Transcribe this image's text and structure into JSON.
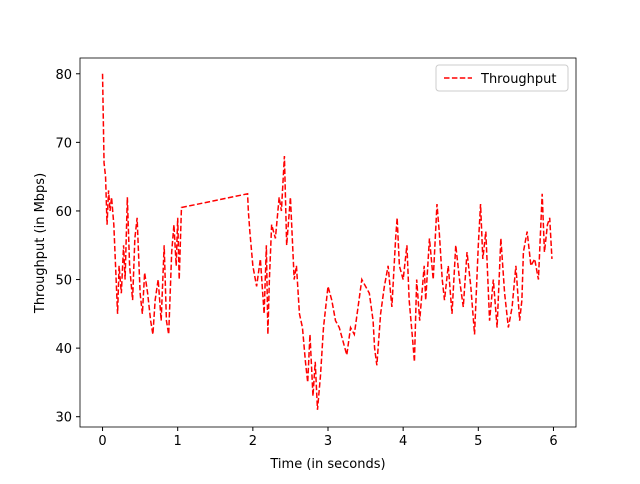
{
  "chart_data": {
    "type": "line",
    "xlabel": "Time (in seconds)",
    "ylabel": "Throughput (in Mbps)",
    "x": [
      0.0,
      0.02,
      0.04,
      0.06,
      0.08,
      0.1,
      0.12,
      0.15,
      0.2,
      0.22,
      0.25,
      0.28,
      0.3,
      0.33,
      0.36,
      0.4,
      0.43,
      0.46,
      0.5,
      0.53,
      0.56,
      0.6,
      0.64,
      0.67,
      0.7,
      0.74,
      0.78,
      0.82,
      0.85,
      0.88,
      0.92,
      0.95,
      0.98,
      1.0,
      1.02,
      1.05,
      1.93,
      1.94,
      1.96,
      2.0,
      2.05,
      2.1,
      2.15,
      2.18,
      2.2,
      2.22,
      2.25,
      2.3,
      2.35,
      2.38,
      2.42,
      2.45,
      2.5,
      2.55,
      2.58,
      2.62,
      2.66,
      2.7,
      2.73,
      2.76,
      2.8,
      2.83,
      2.86,
      2.9,
      2.94,
      3.0,
      3.05,
      3.1,
      3.15,
      3.2,
      3.25,
      3.3,
      3.35,
      3.4,
      3.45,
      3.5,
      3.55,
      3.6,
      3.62,
      3.65,
      3.7,
      3.75,
      3.8,
      3.85,
      3.9,
      3.92,
      3.95,
      4.0,
      4.05,
      4.08,
      4.12,
      4.15,
      4.18,
      4.22,
      4.28,
      4.3,
      4.35,
      4.4,
      4.45,
      4.48,
      4.52,
      4.55,
      4.6,
      4.65,
      4.7,
      4.75,
      4.8,
      4.85,
      4.9,
      4.95,
      5.0,
      5.03,
      5.06,
      5.1,
      5.15,
      5.2,
      5.25,
      5.3,
      5.35,
      5.4,
      5.45,
      5.5,
      5.55,
      5.58,
      5.6,
      5.65,
      5.7,
      5.75,
      5.8,
      5.85,
      5.88,
      5.92,
      5.95,
      5.98
    ],
    "series": [
      {
        "name": "Throughput",
        "color": "#ff0000",
        "dash": true,
        "values": [
          80,
          67,
          65,
          58,
          63,
          60,
          62,
          58,
          45,
          52,
          48,
          55,
          50,
          62,
          52,
          47,
          56,
          59,
          48,
          45,
          51,
          48,
          44,
          42,
          47,
          50,
          44,
          55,
          44,
          42,
          54,
          58,
          52,
          59,
          50,
          60.5,
          62.5,
          60,
          57,
          52,
          49,
          53,
          45,
          55,
          42,
          50,
          58,
          56,
          62,
          60,
          68,
          55,
          62,
          50,
          52,
          45,
          43,
          38,
          35,
          42,
          33,
          38,
          31,
          36,
          43,
          49,
          47,
          44,
          43,
          41,
          39,
          43,
          42,
          46,
          50,
          49,
          48,
          44,
          40,
          37.5,
          45,
          49,
          52,
          46,
          56,
          59,
          52,
          50,
          55,
          47,
          42,
          38,
          50,
          44,
          52,
          47,
          56,
          50,
          61,
          57,
          50,
          47,
          52,
          45,
          55,
          50,
          46,
          54,
          49,
          42,
          55,
          61,
          53,
          57,
          44,
          50,
          43,
          56,
          48,
          43,
          46,
          52,
          44,
          47,
          54,
          57,
          52,
          53,
          50,
          62.5,
          54,
          58,
          59,
          53
        ]
      }
    ],
    "xlim": [
      -0.3,
      6.3
    ],
    "ylim": [
      28.5,
      82.3
    ],
    "xticks": [
      0,
      1,
      2,
      3,
      4,
      5,
      6
    ],
    "yticks": [
      30,
      40,
      50,
      60,
      70,
      80
    ],
    "legend": "upper right"
  }
}
